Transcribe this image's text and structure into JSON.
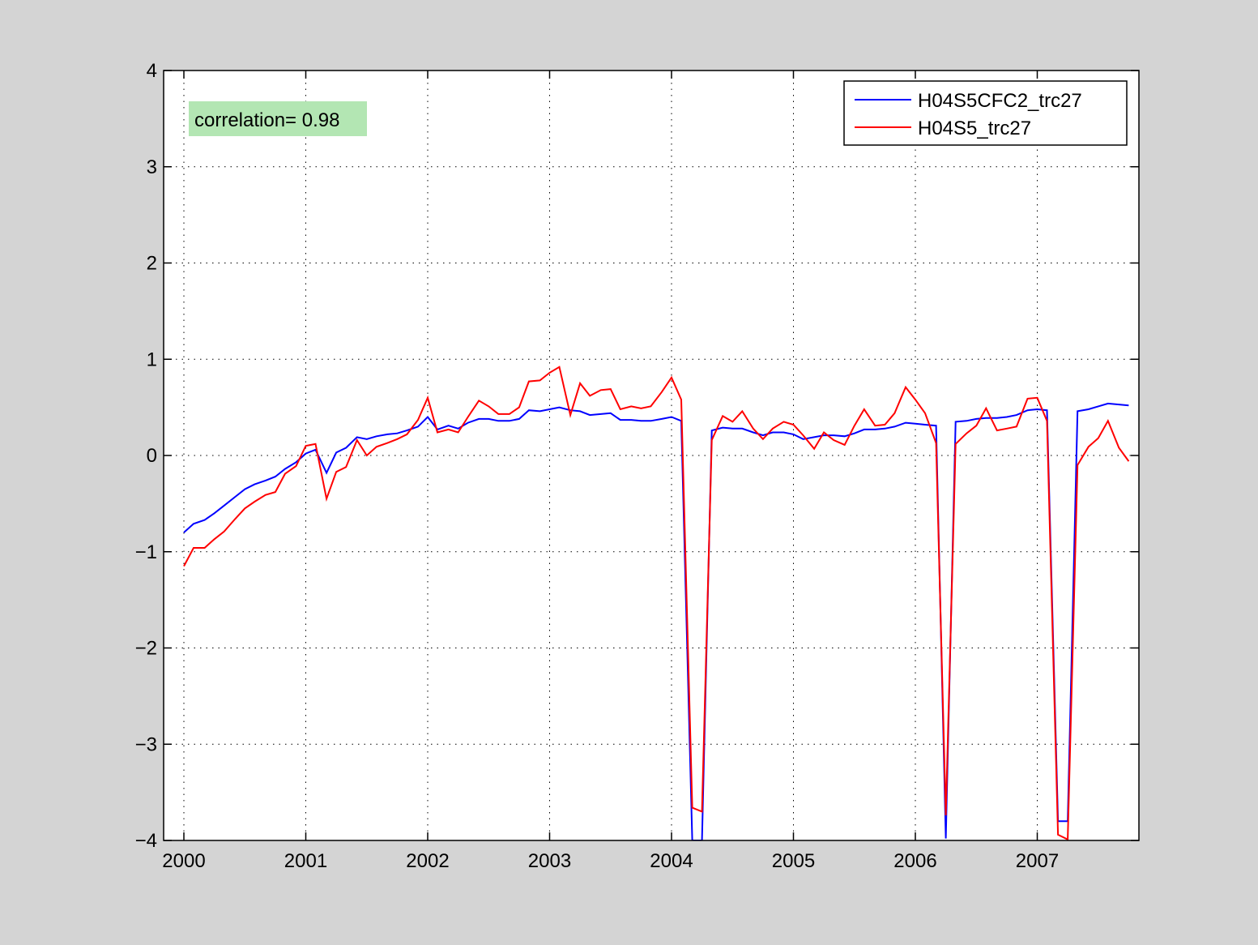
{
  "chart_data": {
    "type": "line",
    "title": "",
    "xlabel": "",
    "ylabel": "",
    "xlim": [
      2000,
      2007.83
    ],
    "ylim": [
      -4,
      4
    ],
    "grid": true,
    "grid_style": "dotted",
    "legend_position": "top-right",
    "x_ticks": [
      2000,
      2001,
      2002,
      2003,
      2004,
      2005,
      2006,
      2007
    ],
    "x_tick_labels": [
      "2000",
      "2001",
      "2002",
      "2003",
      "2004",
      "2005",
      "2006",
      "2007"
    ],
    "y_ticks": [
      -4,
      -3,
      -2,
      -1,
      0,
      1,
      2,
      3,
      4
    ],
    "y_tick_labels": [
      "−4",
      "−3",
      "−2",
      "−1",
      "0",
      "1",
      "2",
      "3",
      "4"
    ],
    "annotation": {
      "text": "correlation= 0.98",
      "background": "#b3e6b3"
    },
    "series": [
      {
        "name": "H04S5CFC2_trc27",
        "color": "#0000ff",
        "values": [
          [
            2000.0,
            -0.8
          ],
          [
            2000.08,
            -0.71
          ],
          [
            2000.17,
            -0.67
          ],
          [
            2000.25,
            -0.6
          ],
          [
            2000.33,
            -0.52
          ],
          [
            2000.42,
            -0.43
          ],
          [
            2000.5,
            -0.35
          ],
          [
            2000.58,
            -0.3
          ],
          [
            2000.67,
            -0.26
          ],
          [
            2000.75,
            -0.22
          ],
          [
            2000.83,
            -0.14
          ],
          [
            2000.92,
            -0.07
          ],
          [
            2001.0,
            0.02
          ],
          [
            2001.08,
            0.06
          ],
          [
            2001.17,
            -0.18
          ],
          [
            2001.25,
            0.03
          ],
          [
            2001.33,
            0.08
          ],
          [
            2001.42,
            0.19
          ],
          [
            2001.5,
            0.17
          ],
          [
            2001.58,
            0.2
          ],
          [
            2001.67,
            0.22
          ],
          [
            2001.75,
            0.23
          ],
          [
            2001.83,
            0.26
          ],
          [
            2001.92,
            0.3
          ],
          [
            2002.0,
            0.4
          ],
          [
            2002.08,
            0.27
          ],
          [
            2002.17,
            0.31
          ],
          [
            2002.25,
            0.28
          ],
          [
            2002.33,
            0.34
          ],
          [
            2002.42,
            0.38
          ],
          [
            2002.5,
            0.38
          ],
          [
            2002.58,
            0.36
          ],
          [
            2002.67,
            0.36
          ],
          [
            2002.75,
            0.38
          ],
          [
            2002.83,
            0.47
          ],
          [
            2002.92,
            0.46
          ],
          [
            2003.0,
            0.48
          ],
          [
            2003.08,
            0.5
          ],
          [
            2003.17,
            0.47
          ],
          [
            2003.25,
            0.46
          ],
          [
            2003.33,
            0.42
          ],
          [
            2003.42,
            0.43
          ],
          [
            2003.5,
            0.44
          ],
          [
            2003.58,
            0.37
          ],
          [
            2003.67,
            0.37
          ],
          [
            2003.75,
            0.36
          ],
          [
            2003.83,
            0.36
          ],
          [
            2003.92,
            0.38
          ],
          [
            2004.0,
            0.4
          ],
          [
            2004.08,
            0.36
          ],
          [
            2004.17,
            -4.0
          ],
          [
            2004.25,
            -4.0
          ],
          [
            2004.33,
            0.26
          ],
          [
            2004.42,
            0.29
          ],
          [
            2004.5,
            0.28
          ],
          [
            2004.58,
            0.28
          ],
          [
            2004.67,
            0.24
          ],
          [
            2004.75,
            0.21
          ],
          [
            2004.83,
            0.24
          ],
          [
            2004.92,
            0.24
          ],
          [
            2005.0,
            0.22
          ],
          [
            2005.08,
            0.17
          ],
          [
            2005.17,
            0.19
          ],
          [
            2005.25,
            0.21
          ],
          [
            2005.33,
            0.21
          ],
          [
            2005.42,
            0.2
          ],
          [
            2005.5,
            0.23
          ],
          [
            2005.58,
            0.27
          ],
          [
            2005.67,
            0.27
          ],
          [
            2005.75,
            0.28
          ],
          [
            2005.83,
            0.3
          ],
          [
            2005.92,
            0.34
          ],
          [
            2006.0,
            0.33
          ],
          [
            2006.08,
            0.32
          ],
          [
            2006.17,
            0.31
          ],
          [
            2006.25,
            -3.98
          ],
          [
            2006.33,
            0.35
          ],
          [
            2006.42,
            0.36
          ],
          [
            2006.5,
            0.38
          ],
          [
            2006.58,
            0.39
          ],
          [
            2006.67,
            0.39
          ],
          [
            2006.75,
            0.4
          ],
          [
            2006.83,
            0.42
          ],
          [
            2006.92,
            0.47
          ],
          [
            2007.0,
            0.48
          ],
          [
            2007.08,
            0.47
          ],
          [
            2007.17,
            -3.8
          ],
          [
            2007.25,
            -3.8
          ],
          [
            2007.33,
            0.46
          ],
          [
            2007.42,
            0.48
          ],
          [
            2007.5,
            0.51
          ],
          [
            2007.58,
            0.54
          ],
          [
            2007.67,
            0.53
          ],
          [
            2007.75,
            0.52
          ]
        ]
      },
      {
        "name": "H04S5_trc27",
        "color": "#ff0000",
        "values": [
          [
            2000.0,
            -1.15
          ],
          [
            2000.08,
            -0.96
          ],
          [
            2000.17,
            -0.96
          ],
          [
            2000.25,
            -0.87
          ],
          [
            2000.33,
            -0.79
          ],
          [
            2000.42,
            -0.66
          ],
          [
            2000.5,
            -0.55
          ],
          [
            2000.58,
            -0.48
          ],
          [
            2000.67,
            -0.41
          ],
          [
            2000.75,
            -0.38
          ],
          [
            2000.83,
            -0.19
          ],
          [
            2000.92,
            -0.11
          ],
          [
            2001.0,
            0.1
          ],
          [
            2001.08,
            0.12
          ],
          [
            2001.17,
            -0.45
          ],
          [
            2001.25,
            -0.17
          ],
          [
            2001.33,
            -0.12
          ],
          [
            2001.42,
            0.16
          ],
          [
            2001.5,
            0.0
          ],
          [
            2001.58,
            0.09
          ],
          [
            2001.67,
            0.13
          ],
          [
            2001.75,
            0.17
          ],
          [
            2001.83,
            0.22
          ],
          [
            2001.92,
            0.37
          ],
          [
            2002.0,
            0.6
          ],
          [
            2002.08,
            0.24
          ],
          [
            2002.17,
            0.27
          ],
          [
            2002.25,
            0.24
          ],
          [
            2002.33,
            0.4
          ],
          [
            2002.42,
            0.57
          ],
          [
            2002.5,
            0.51
          ],
          [
            2002.58,
            0.43
          ],
          [
            2002.67,
            0.43
          ],
          [
            2002.75,
            0.5
          ],
          [
            2002.83,
            0.77
          ],
          [
            2002.92,
            0.78
          ],
          [
            2003.0,
            0.86
          ],
          [
            2003.08,
            0.92
          ],
          [
            2003.17,
            0.42
          ],
          [
            2003.25,
            0.75
          ],
          [
            2003.33,
            0.62
          ],
          [
            2003.42,
            0.68
          ],
          [
            2003.5,
            0.69
          ],
          [
            2003.58,
            0.48
          ],
          [
            2003.67,
            0.51
          ],
          [
            2003.75,
            0.49
          ],
          [
            2003.83,
            0.51
          ],
          [
            2003.92,
            0.66
          ],
          [
            2004.0,
            0.81
          ],
          [
            2004.08,
            0.58
          ],
          [
            2004.17,
            -3.66
          ],
          [
            2004.25,
            -3.7
          ],
          [
            2004.33,
            0.16
          ],
          [
            2004.42,
            0.41
          ],
          [
            2004.5,
            0.35
          ],
          [
            2004.58,
            0.46
          ],
          [
            2004.67,
            0.28
          ],
          [
            2004.75,
            0.17
          ],
          [
            2004.83,
            0.28
          ],
          [
            2004.92,
            0.35
          ],
          [
            2005.0,
            0.32
          ],
          [
            2005.08,
            0.21
          ],
          [
            2005.17,
            0.07
          ],
          [
            2005.25,
            0.24
          ],
          [
            2005.33,
            0.16
          ],
          [
            2005.42,
            0.11
          ],
          [
            2005.5,
            0.31
          ],
          [
            2005.58,
            0.48
          ],
          [
            2005.67,
            0.31
          ],
          [
            2005.75,
            0.32
          ],
          [
            2005.83,
            0.44
          ],
          [
            2005.92,
            0.71
          ],
          [
            2006.0,
            0.58
          ],
          [
            2006.08,
            0.44
          ],
          [
            2006.17,
            0.13
          ],
          [
            2006.25,
            -3.74
          ],
          [
            2006.33,
            0.12
          ],
          [
            2006.42,
            0.23
          ],
          [
            2006.5,
            0.31
          ],
          [
            2006.58,
            0.49
          ],
          [
            2006.67,
            0.26
          ],
          [
            2006.75,
            0.28
          ],
          [
            2006.83,
            0.3
          ],
          [
            2006.92,
            0.59
          ],
          [
            2007.0,
            0.6
          ],
          [
            2007.08,
            0.36
          ],
          [
            2007.17,
            -3.94
          ],
          [
            2007.25,
            -3.99
          ],
          [
            2007.33,
            -0.1
          ],
          [
            2007.42,
            0.09
          ],
          [
            2007.5,
            0.18
          ],
          [
            2007.58,
            0.36
          ],
          [
            2007.67,
            0.08
          ],
          [
            2007.75,
            -0.06
          ]
        ]
      }
    ]
  }
}
